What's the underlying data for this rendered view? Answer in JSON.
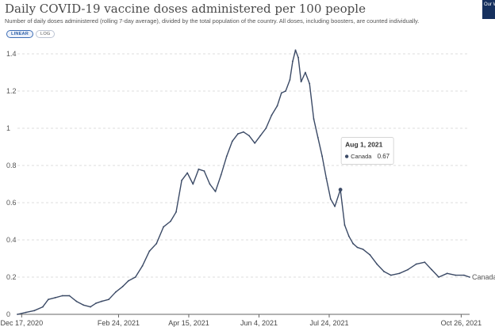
{
  "header": {
    "title": "Daily COVID-19 vaccine doses administered per 100 people",
    "subtitle": "Number of daily doses administered (rolling 7-day average), divided by the total population of the country. All doses, including boosters, are counted individually.",
    "toggle_linear": "LINEAR",
    "toggle_log": "LOG",
    "logo_text": "Our W in D"
  },
  "colors": {
    "line": "#3b4a66",
    "grid": "#dcdcdc",
    "logo_bg": "#16305e",
    "toggle_accent": "#3c6db5"
  },
  "chart_data": {
    "type": "line",
    "title": "Daily COVID-19 vaccine doses administered per 100 people",
    "xlabel": "",
    "ylabel": "",
    "ylim": [
      0,
      1.4
    ],
    "yticks": [
      0,
      0.2,
      0.4,
      0.6,
      0.8,
      1,
      1.2,
      1.4
    ],
    "xlim": [
      "2020-12-14",
      "2021-11-01"
    ],
    "xticks": [
      "2020-12-17",
      "2021-02-24",
      "2021-04-15",
      "2021-06-04",
      "2021-07-24",
      "2021-10-26"
    ],
    "xtick_labels": [
      "Dec 17, 2020",
      "Feb 24, 2021",
      "Apr 15, 2021",
      "Jun 4, 2021",
      "Jul 24, 2021",
      "Oct 26, 2021"
    ],
    "grid": "horizontal",
    "legend": "end-of-line label",
    "series": [
      {
        "name": "Canada",
        "x": [
          "2020-12-14",
          "2020-12-20",
          "2020-12-26",
          "2021-01-01",
          "2021-01-05",
          "2021-01-10",
          "2021-01-15",
          "2021-01-20",
          "2021-01-25",
          "2021-01-30",
          "2021-02-04",
          "2021-02-08",
          "2021-02-12",
          "2021-02-17",
          "2021-02-22",
          "2021-02-27",
          "2021-03-03",
          "2021-03-08",
          "2021-03-13",
          "2021-03-18",
          "2021-03-23",
          "2021-03-28",
          "2021-04-02",
          "2021-04-06",
          "2021-04-10",
          "2021-04-14",
          "2021-04-18",
          "2021-04-22",
          "2021-04-26",
          "2021-04-30",
          "2021-05-04",
          "2021-05-08",
          "2021-05-12",
          "2021-05-16",
          "2021-05-20",
          "2021-05-24",
          "2021-05-28",
          "2021-06-01",
          "2021-06-05",
          "2021-06-09",
          "2021-06-13",
          "2021-06-17",
          "2021-06-20",
          "2021-06-23",
          "2021-06-26",
          "2021-06-28",
          "2021-06-30",
          "2021-07-02",
          "2021-07-04",
          "2021-07-07",
          "2021-07-10",
          "2021-07-13",
          "2021-07-16",
          "2021-07-19",
          "2021-07-22",
          "2021-07-25",
          "2021-07-28",
          "2021-08-01",
          "2021-08-04",
          "2021-08-07",
          "2021-08-10",
          "2021-08-13",
          "2021-08-17",
          "2021-08-22",
          "2021-08-27",
          "2021-09-01",
          "2021-09-06",
          "2021-09-12",
          "2021-09-18",
          "2021-09-24",
          "2021-09-30",
          "2021-10-05",
          "2021-10-10",
          "2021-10-16",
          "2021-10-22",
          "2021-10-28",
          "2021-11-01"
        ],
        "values": [
          0.0,
          0.01,
          0.02,
          0.04,
          0.08,
          0.09,
          0.1,
          0.1,
          0.07,
          0.05,
          0.04,
          0.06,
          0.07,
          0.08,
          0.12,
          0.15,
          0.18,
          0.2,
          0.26,
          0.34,
          0.38,
          0.47,
          0.5,
          0.55,
          0.72,
          0.76,
          0.7,
          0.78,
          0.77,
          0.7,
          0.66,
          0.75,
          0.85,
          0.93,
          0.97,
          0.98,
          0.96,
          0.92,
          0.96,
          1.0,
          1.07,
          1.12,
          1.19,
          1.2,
          1.26,
          1.36,
          1.42,
          1.38,
          1.25,
          1.3,
          1.24,
          1.05,
          0.95,
          0.85,
          0.73,
          0.62,
          0.58,
          0.67,
          0.48,
          0.42,
          0.38,
          0.36,
          0.35,
          0.32,
          0.27,
          0.23,
          0.21,
          0.22,
          0.24,
          0.27,
          0.28,
          0.24,
          0.2,
          0.22,
          0.21,
          0.21,
          0.2
        ]
      }
    ],
    "annotation": {
      "date_label": "Aug 1, 2021",
      "series": "Canada",
      "value_label": "0.67",
      "x": "2021-08-01",
      "y": 0.67
    }
  }
}
